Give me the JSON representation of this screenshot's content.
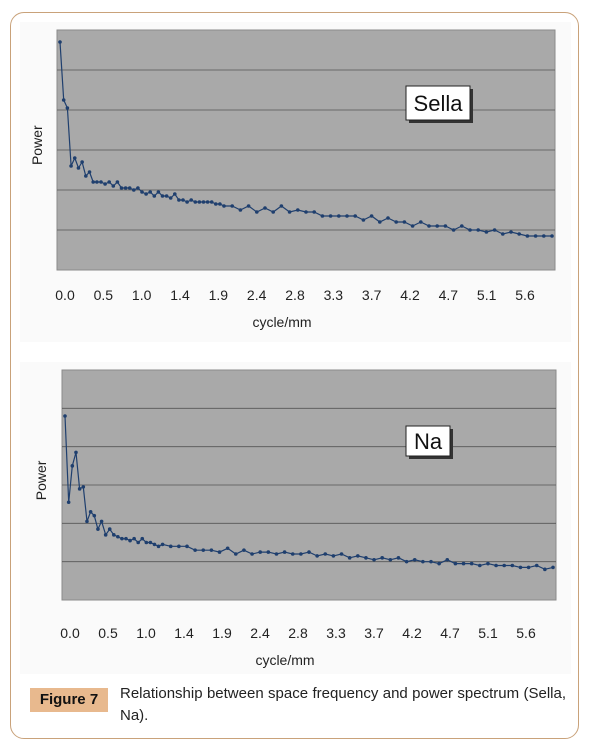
{
  "figure": {
    "label": "Figure 7",
    "caption": "Relationship between space frequency and power spectrum (Sella, Na)."
  },
  "chart_data": [
    {
      "type": "line",
      "title": "Sella",
      "xlabel": "cycle/mm",
      "ylabel": "Power",
      "grid": true,
      "x_tick_labels": [
        "0.0",
        "0.5",
        "1.0",
        "1.4",
        "1.9",
        "2.4",
        "2.8",
        "3.3",
        "3.7",
        "4.2",
        "4.7",
        "5.1",
        "5.6"
      ],
      "xlim": [
        0.0,
        6.0
      ],
      "ylim": [
        0,
        6
      ],
      "color": "#1f3f6e",
      "series": [
        {
          "x": [
            0.0,
            0.045,
            0.09,
            0.135,
            0.18,
            0.225,
            0.27,
            0.315,
            0.36,
            0.405,
            0.45,
            0.5,
            0.55,
            0.6,
            0.65,
            0.7,
            0.75,
            0.8,
            0.85,
            0.9,
            0.95,
            1.0,
            1.05,
            1.1,
            1.15,
            1.2,
            1.25,
            1.3,
            1.35,
            1.4,
            1.45,
            1.5,
            1.55,
            1.6,
            1.65,
            1.7,
            1.75,
            1.8,
            1.85,
            1.9,
            1.95,
            2.0,
            2.1,
            2.2,
            2.3,
            2.4,
            2.5,
            2.6,
            2.7,
            2.8,
            2.9,
            3.0,
            3.1,
            3.2,
            3.3,
            3.4,
            3.5,
            3.6,
            3.7,
            3.8,
            3.9,
            4.0,
            4.1,
            4.2,
            4.3,
            4.4,
            4.5,
            4.6,
            4.7,
            4.8,
            4.9,
            5.0,
            5.1,
            5.2,
            5.3,
            5.4,
            5.5,
            5.6,
            5.7,
            5.8,
            5.9,
            6.0
          ],
          "y": [
            5.7,
            4.25,
            4.05,
            2.6,
            2.8,
            2.55,
            2.7,
            2.35,
            2.45,
            2.2,
            2.2,
            2.2,
            2.15,
            2.2,
            2.1,
            2.2,
            2.05,
            2.05,
            2.05,
            2.0,
            2.05,
            1.95,
            1.9,
            1.95,
            1.85,
            1.95,
            1.85,
            1.85,
            1.8,
            1.9,
            1.75,
            1.75,
            1.7,
            1.75,
            1.7,
            1.7,
            1.7,
            1.7,
            1.7,
            1.65,
            1.65,
            1.6,
            1.6,
            1.5,
            1.6,
            1.45,
            1.55,
            1.45,
            1.6,
            1.45,
            1.5,
            1.45,
            1.45,
            1.35,
            1.35,
            1.35,
            1.35,
            1.35,
            1.25,
            1.35,
            1.2,
            1.3,
            1.2,
            1.2,
            1.1,
            1.2,
            1.1,
            1.1,
            1.1,
            1.0,
            1.1,
            1.0,
            1.0,
            0.95,
            1.0,
            0.9,
            0.95,
            0.9,
            0.85,
            0.85,
            0.85,
            0.85
          ]
        }
      ]
    },
    {
      "type": "line",
      "title": "Na",
      "xlabel": "cycle/mm",
      "ylabel": "Power",
      "grid": true,
      "x_tick_labels": [
        "0.0",
        "0.5",
        "1.0",
        "1.4",
        "1.9",
        "2.4",
        "2.8",
        "3.3",
        "3.7",
        "4.2",
        "4.7",
        "5.1",
        "5.6"
      ],
      "xlim": [
        0.0,
        6.0
      ],
      "ylim": [
        0,
        6
      ],
      "color": "#1f3f6e",
      "series": [
        {
          "x": [
            0.0,
            0.045,
            0.09,
            0.135,
            0.18,
            0.225,
            0.27,
            0.315,
            0.36,
            0.405,
            0.45,
            0.5,
            0.55,
            0.6,
            0.65,
            0.7,
            0.75,
            0.8,
            0.85,
            0.9,
            0.95,
            1.0,
            1.05,
            1.1,
            1.15,
            1.2,
            1.3,
            1.4,
            1.5,
            1.6,
            1.7,
            1.8,
            1.9,
            2.0,
            2.1,
            2.2,
            2.3,
            2.4,
            2.5,
            2.6,
            2.7,
            2.8,
            2.9,
            3.0,
            3.1,
            3.2,
            3.3,
            3.4,
            3.5,
            3.6,
            3.7,
            3.8,
            3.9,
            4.0,
            4.1,
            4.2,
            4.3,
            4.4,
            4.5,
            4.6,
            4.7,
            4.8,
            4.9,
            5.0,
            5.1,
            5.2,
            5.3,
            5.4,
            5.5,
            5.6,
            5.7,
            5.8,
            5.9,
            6.0
          ],
          "y": [
            4.8,
            2.55,
            3.5,
            3.85,
            2.9,
            2.95,
            2.05,
            2.3,
            2.2,
            1.85,
            2.05,
            1.7,
            1.85,
            1.7,
            1.65,
            1.6,
            1.6,
            1.55,
            1.6,
            1.5,
            1.6,
            1.5,
            1.5,
            1.45,
            1.4,
            1.45,
            1.4,
            1.4,
            1.4,
            1.3,
            1.3,
            1.3,
            1.25,
            1.35,
            1.2,
            1.3,
            1.2,
            1.25,
            1.25,
            1.2,
            1.25,
            1.2,
            1.2,
            1.25,
            1.15,
            1.2,
            1.15,
            1.2,
            1.1,
            1.15,
            1.1,
            1.05,
            1.1,
            1.05,
            1.1,
            1.0,
            1.05,
            1.0,
            1.0,
            0.95,
            1.05,
            0.95,
            0.95,
            0.95,
            0.9,
            0.95,
            0.9,
            0.9,
            0.9,
            0.85,
            0.85,
            0.9,
            0.8,
            0.85
          ]
        }
      ]
    }
  ]
}
